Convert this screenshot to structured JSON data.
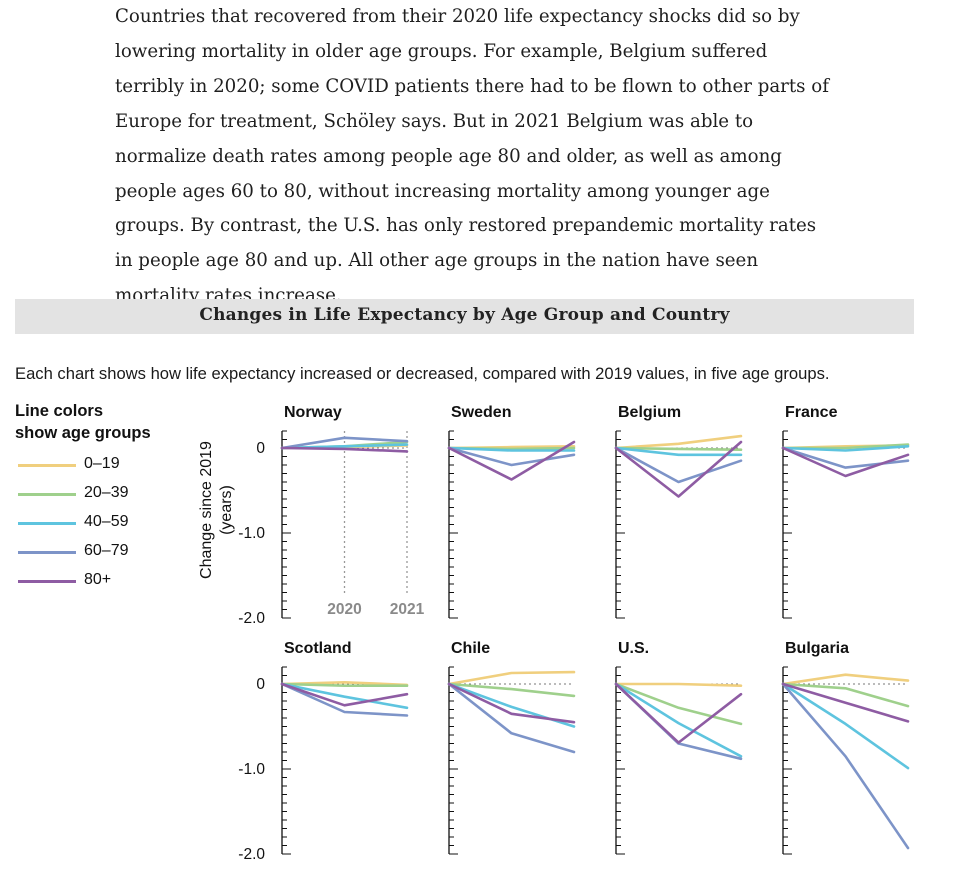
{
  "article": {
    "paragraph": "Countries that recovered from their 2020 life expectancy shocks did so by lowering mortality in older age groups. For example, Belgium suffered terribly in 2020; some COVID patients there had to be flown to other parts of Europe for treatment, Schöley says. But in 2021 Belgium was able to normalize death rates among people age 80 and older, as well as among people ages 60 to 80, without increasing mortality among younger age groups. By contrast, the U.S. has only restored prepandemic mortality rates in people age 80 and up. All other age groups in the nation have seen mortality rates increase."
  },
  "figure": {
    "title": "Changes in Life Expectancy by Age Group and Country",
    "subtitle": "Each chart shows how life expectancy increased or decreased, compared with 2019 values, in five age groups."
  },
  "legend": {
    "title_line1": "Line colors",
    "title_line2": "show age groups",
    "items": [
      {
        "label": "0–19",
        "color": "#f0cf7e"
      },
      {
        "label": "20–39",
        "color": "#9fd08c"
      },
      {
        "label": "40–59",
        "color": "#5ec4df"
      },
      {
        "label": "60–79",
        "color": "#7d94c8"
      },
      {
        "label": "80+",
        "color": "#8e5ca3"
      }
    ]
  },
  "chart_data": {
    "type": "line",
    "ylabel_line1": "Change since 2019",
    "ylabel_line2": "(years)",
    "x": [
      2019,
      2020,
      2021
    ],
    "x_tick_labels": [
      "2020",
      "2021"
    ],
    "y_tick_labels": [
      "0",
      "-1.0",
      "-2.0"
    ],
    "ylim": [
      -2.0,
      0.2
    ],
    "baseline": 0,
    "series_order": [
      "0–19",
      "20–39",
      "40–59",
      "60–79",
      "80+"
    ],
    "panels": [
      {
        "country": "Norway",
        "values": [
          [
            0,
            0.01,
            0.03
          ],
          [
            0,
            0.02,
            0.07
          ],
          [
            0,
            0.02,
            0.04
          ],
          [
            0,
            0.12,
            0.08
          ],
          [
            0,
            -0.01,
            -0.04
          ]
        ]
      },
      {
        "country": "Sweden",
        "values": [
          [
            0,
            0.01,
            0.02
          ],
          [
            0,
            -0.01,
            0.0
          ],
          [
            0,
            -0.03,
            -0.03
          ],
          [
            0,
            -0.2,
            -0.08
          ],
          [
            0,
            -0.37,
            0.07
          ]
        ]
      },
      {
        "country": "Belgium",
        "values": [
          [
            0,
            0.05,
            0.14
          ],
          [
            0,
            -0.01,
            -0.02
          ],
          [
            0,
            -0.08,
            -0.08
          ],
          [
            0,
            -0.4,
            -0.15
          ],
          [
            0,
            -0.57,
            0.07
          ]
        ]
      },
      {
        "country": "France",
        "values": [
          [
            0,
            0.02,
            0.03
          ],
          [
            0,
            0.0,
            0.04
          ],
          [
            0,
            -0.03,
            0.02
          ],
          [
            0,
            -0.23,
            -0.15
          ],
          [
            0,
            -0.33,
            -0.08
          ]
        ]
      },
      {
        "country": "Scotland",
        "values": [
          [
            0,
            0.02,
            -0.01
          ],
          [
            0,
            -0.02,
            -0.02
          ],
          [
            0,
            -0.15,
            -0.28
          ],
          [
            0,
            -0.33,
            -0.37
          ],
          [
            0,
            -0.25,
            -0.12
          ]
        ]
      },
      {
        "country": "Chile",
        "values": [
          [
            0,
            0.13,
            0.14
          ],
          [
            0,
            -0.06,
            -0.14
          ],
          [
            0,
            -0.27,
            -0.5
          ],
          [
            0,
            -0.58,
            -0.8
          ],
          [
            0,
            -0.35,
            -0.45
          ]
        ]
      },
      {
        "country": "U.S.",
        "values": [
          [
            0,
            0.0,
            -0.02
          ],
          [
            0,
            -0.28,
            -0.47
          ],
          [
            0,
            -0.46,
            -0.85
          ],
          [
            0,
            -0.7,
            -0.88
          ],
          [
            0,
            -0.69,
            -0.12
          ]
        ]
      },
      {
        "country": "Bulgaria",
        "values": [
          [
            0,
            0.11,
            0.04
          ],
          [
            0,
            -0.05,
            -0.26
          ],
          [
            0,
            -0.47,
            -0.99
          ],
          [
            0,
            -0.85,
            -1.93
          ],
          [
            0,
            -0.22,
            -0.44
          ]
        ]
      }
    ]
  }
}
